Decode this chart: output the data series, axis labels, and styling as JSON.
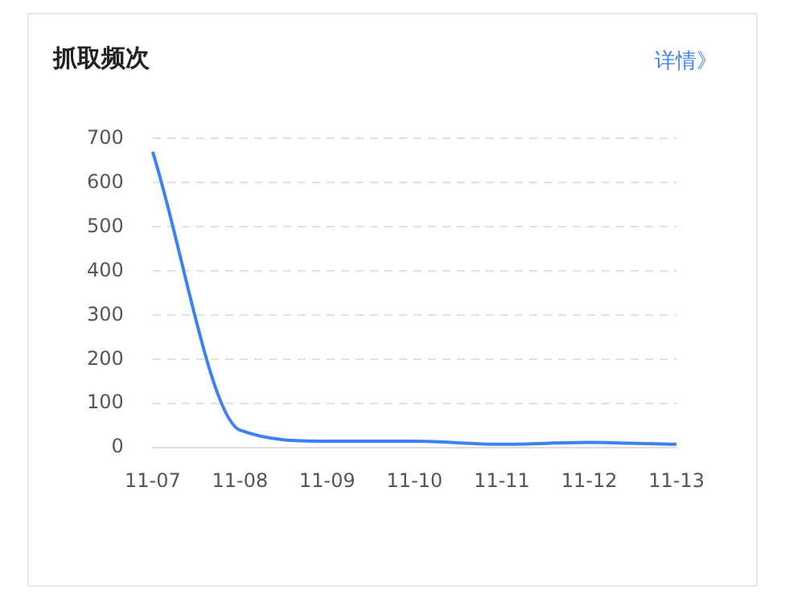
{
  "chart_data": {
    "type": "line",
    "title": "抓取频次",
    "annotations": [
      "详情》"
    ],
    "categories": [
      "11-07",
      "11-08",
      "11-09",
      "11-10",
      "11-11",
      "11-12",
      "11-13"
    ],
    "series": [
      {
        "color": "#3b82f6",
        "values": [
          670,
          40,
          15,
          15,
          8,
          12,
          8
        ]
      }
    ],
    "ylim": [
      0,
      700
    ],
    "yticks": [
      0,
      100,
      200,
      300,
      400,
      500,
      600,
      700
    ],
    "grid": "y",
    "legend": false,
    "marker": "none",
    "line_style": "solid"
  }
}
